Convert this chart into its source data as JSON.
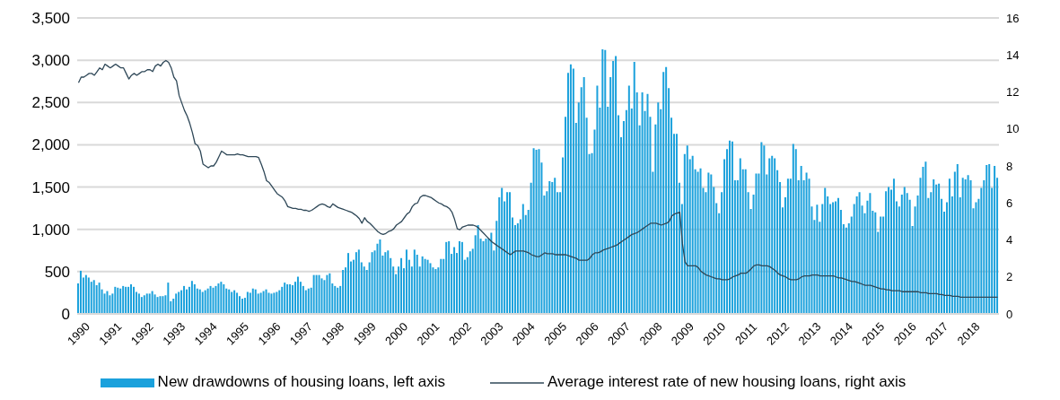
{
  "chart_data": {
    "type": "bar",
    "categories": [
      "1990",
      null,
      null,
      null,
      null,
      null,
      null,
      null,
      null,
      null,
      null,
      null,
      "1991",
      null,
      null,
      null,
      null,
      null,
      null,
      null,
      null,
      null,
      null,
      null,
      "1992",
      null,
      null,
      null,
      null,
      null,
      null,
      null,
      null,
      null,
      null,
      null,
      "1993",
      null,
      null,
      null,
      null,
      null,
      null,
      null,
      null,
      null,
      null,
      null,
      "1994",
      null,
      null,
      null,
      null,
      null,
      null,
      null,
      null,
      null,
      null,
      null,
      "1995",
      null,
      null,
      null,
      null,
      null,
      null,
      null,
      null,
      null,
      null,
      null,
      "1996",
      null,
      null,
      null,
      null,
      null,
      null,
      null,
      null,
      null,
      null,
      null,
      "1997",
      null,
      null,
      null,
      null,
      null,
      null,
      null,
      null,
      null,
      null,
      null,
      "1998",
      null,
      null,
      null,
      null,
      null,
      null,
      null,
      null,
      null,
      null,
      null,
      "1999",
      null,
      null,
      null,
      null,
      null,
      null,
      null,
      null,
      null,
      null,
      null,
      "2000",
      null,
      null,
      null,
      null,
      null,
      null,
      null,
      null,
      null,
      null,
      null,
      "2001",
      null,
      null,
      null,
      null,
      null,
      null,
      null,
      null,
      null,
      null,
      null,
      "2002",
      null,
      null,
      null,
      null,
      null,
      null,
      null,
      null,
      null,
      null,
      null,
      "2003",
      null,
      null,
      null,
      null,
      null,
      null,
      null,
      null,
      null,
      null,
      null,
      "2004",
      null,
      null,
      null,
      null,
      null,
      null,
      null,
      null,
      null,
      null,
      null,
      "2005",
      null,
      null,
      null,
      null,
      null,
      null,
      null,
      null,
      null,
      null,
      null,
      "2006",
      null,
      null,
      null,
      null,
      null,
      null,
      null,
      null,
      null,
      null,
      null,
      "2007",
      null,
      null,
      null,
      null,
      null,
      null,
      null,
      null,
      null,
      null,
      null,
      "2008",
      null,
      null,
      null,
      null,
      null,
      null,
      null,
      null,
      null,
      null,
      null,
      "2009",
      null,
      null,
      null,
      null,
      null,
      null,
      null,
      null,
      null,
      null,
      null,
      "2010",
      null,
      null,
      null,
      null,
      null,
      null,
      null,
      null,
      null,
      null,
      null,
      "2011",
      null,
      null,
      null,
      null,
      null,
      null,
      null,
      null,
      null,
      null,
      null,
      "2012",
      null,
      null,
      null,
      null,
      null,
      null,
      null,
      null,
      null,
      null,
      null,
      "2013",
      null,
      null,
      null,
      null,
      null,
      null,
      null,
      null,
      null,
      null,
      null,
      "2014",
      null,
      null,
      null,
      null,
      null,
      null,
      null,
      null,
      null,
      null,
      null,
      "2015",
      null,
      null,
      null,
      null,
      null,
      null,
      null,
      null,
      null,
      null,
      null,
      "2016",
      null,
      null,
      null,
      null,
      null,
      null,
      null,
      null,
      null,
      null,
      null,
      "2017",
      null,
      null,
      null,
      null,
      null,
      null,
      null,
      null,
      null,
      null,
      null,
      "2018",
      null,
      null,
      null,
      null,
      null,
      null,
      null,
      null,
      null,
      null,
      null
    ],
    "series": [
      {
        "name": "New drawdowns of housing loans, left axis",
        "color": "#1ba1dc",
        "values": [
          360,
          510,
          430,
          460,
          430,
          380,
          400,
          340,
          370,
          290,
          240,
          270,
          220,
          240,
          320,
          310,
          300,
          330,
          320,
          320,
          350,
          320,
          260,
          240,
          200,
          220,
          240,
          240,
          270,
          230,
          200,
          210,
          210,
          220,
          370,
          150,
          180,
          240,
          260,
          280,
          330,
          290,
          320,
          390,
          350,
          300,
          290,
          260,
          280,
          300,
          330,
          310,
          330,
          360,
          380,
          350,
          300,
          290,
          260,
          280,
          250,
          210,
          180,
          190,
          260,
          250,
          300,
          290,
          240,
          250,
          270,
          290,
          250,
          240,
          250,
          260,
          280,
          320,
          370,
          350,
          350,
          340,
          380,
          440,
          380,
          330,
          280,
          300,
          310,
          460,
          460,
          460,
          420,
          400,
          460,
          480,
          360,
          330,
          310,
          330,
          520,
          550,
          720,
          620,
          640,
          730,
          760,
          610,
          560,
          520,
          610,
          730,
          750,
          830,
          880,
          690,
          730,
          750,
          660,
          560,
          470,
          560,
          660,
          540,
          760,
          640,
          560,
          760,
          700,
          560,
          680,
          650,
          640,
          600,
          550,
          530,
          550,
          650,
          650,
          850,
          860,
          710,
          790,
          720,
          860,
          850,
          640,
          670,
          740,
          770,
          930,
          1050,
          890,
          860,
          890,
          890,
          960,
          750,
          1100,
          1380,
          1490,
          1330,
          1440,
          1440,
          1140,
          1050,
          1070,
          1120,
          1300,
          1170,
          1230,
          1550,
          1960,
          1940,
          1950,
          1790,
          1400,
          1450,
          1570,
          1560,
          1610,
          1440,
          1440,
          1850,
          2330,
          2850,
          2950,
          2900,
          2260,
          2500,
          2680,
          2800,
          2320,
          1890,
          1900,
          2180,
          2700,
          2440,
          3130,
          3120,
          2450,
          2800,
          2990,
          3050,
          2350,
          2090,
          2280,
          2410,
          2700,
          2430,
          2980,
          2620,
          2230,
          2620,
          2400,
          2600,
          2330,
          1680,
          2240,
          2500,
          2420,
          2860,
          2920,
          2670,
          2320,
          2130,
          2130,
          1550,
          1300,
          1890,
          1990,
          1830,
          1870,
          1710,
          1680,
          1720,
          1490,
          1440,
          1670,
          1650,
          1500,
          1310,
          1190,
          1440,
          1830,
          1950,
          2050,
          2040,
          1580,
          1580,
          1840,
          1710,
          1710,
          1440,
          1240,
          1410,
          1660,
          1660,
          2030,
          1990,
          1650,
          1840,
          1870,
          1840,
          1700,
          1560,
          1260,
          1380,
          1600,
          1600,
          2010,
          1950,
          1580,
          1750,
          1580,
          1670,
          1600,
          1270,
          1110,
          1290,
          1090,
          1300,
          1490,
          1390,
          1300,
          1320,
          1330,
          1370,
          1230,
          1060,
          1020,
          1070,
          1150,
          1300,
          1390,
          1440,
          1280,
          1190,
          1340,
          1430,
          1220,
          1200,
          970,
          1150,
          1150,
          1450,
          1500,
          1470,
          1600,
          1330,
          1270,
          1410,
          1500,
          1430,
          1350,
          1040,
          1270,
          1400,
          1610,
          1740,
          1800,
          1370,
          1440,
          1590,
          1530,
          1540,
          1360,
          1210,
          1320,
          1600,
          1390,
          1680,
          1770,
          1380,
          1610,
          1590,
          1640,
          1580,
          1250,
          1320,
          1360,
          1490,
          1580,
          1760,
          1770,
          1490,
          1750,
          1610
        ]
      },
      {
        "name": "Average interest rate of new housing loans, right axis",
        "type": "line",
        "axis": "y2",
        "color": "#2f4858",
        "values": [
          12.5,
          12.8,
          12.8,
          12.9,
          13.0,
          13.0,
          12.9,
          13.1,
          13.3,
          13.2,
          13.5,
          13.4,
          13.3,
          13.4,
          13.5,
          13.4,
          13.3,
          13.3,
          13.0,
          12.7,
          12.9,
          13.0,
          12.9,
          13.0,
          13.1,
          13.1,
          13.2,
          13.2,
          13.1,
          13.4,
          13.5,
          13.4,
          13.6,
          13.7,
          13.6,
          13.3,
          12.8,
          12.6,
          11.8,
          11.4,
          11.0,
          10.7,
          10.3,
          9.8,
          9.2,
          9.1,
          8.8,
          8.1,
          8.0,
          7.9,
          8.0,
          8.0,
          8.2,
          8.5,
          8.8,
          8.7,
          8.6,
          8.6,
          8.6,
          8.6,
          8.65,
          8.6,
          8.6,
          8.55,
          8.5,
          8.5,
          8.5,
          8.5,
          8.45,
          8.1,
          7.7,
          7.2,
          7.1,
          6.9,
          6.7,
          6.5,
          6.4,
          6.3,
          6.1,
          5.8,
          5.75,
          5.7,
          5.7,
          5.65,
          5.65,
          5.6,
          5.6,
          5.55,
          5.6,
          5.7,
          5.8,
          5.9,
          5.95,
          5.9,
          5.8,
          5.75,
          5.95,
          5.85,
          5.75,
          5.7,
          5.65,
          5.6,
          5.55,
          5.5,
          5.4,
          5.3,
          5.15,
          4.9,
          5.2,
          5.0,
          4.9,
          4.75,
          4.6,
          4.45,
          4.35,
          4.3,
          4.35,
          4.45,
          4.5,
          4.6,
          4.8,
          4.9,
          5.0,
          5.2,
          5.4,
          5.5,
          5.8,
          5.95,
          6.0,
          6.3,
          6.4,
          6.4,
          6.35,
          6.3,
          6.2,
          6.1,
          6.0,
          5.95,
          5.85,
          5.8,
          5.7,
          5.5,
          5.1,
          4.6,
          4.55,
          4.7,
          4.75,
          4.8,
          4.8,
          4.8,
          4.75,
          4.65,
          4.5,
          4.35,
          4.2,
          4.05,
          3.9,
          3.8,
          3.7,
          3.6,
          3.5,
          3.4,
          3.3,
          3.2,
          3.3,
          3.4,
          3.4,
          3.4,
          3.4,
          3.35,
          3.3,
          3.2,
          3.15,
          3.1,
          3.1,
          3.2,
          3.3,
          3.25,
          3.25,
          3.25,
          3.2,
          3.2,
          3.2,
          3.2,
          3.2,
          3.15,
          3.1,
          3.05,
          3.0,
          2.9,
          2.9,
          2.9,
          2.9,
          3.0,
          3.2,
          3.3,
          3.3,
          3.35,
          3.45,
          3.5,
          3.55,
          3.6,
          3.65,
          3.7,
          3.8,
          3.9,
          4.0,
          4.1,
          4.2,
          4.3,
          4.35,
          4.4,
          4.5,
          4.6,
          4.7,
          4.8,
          4.9,
          4.9,
          4.9,
          4.85,
          4.8,
          4.85,
          4.9,
          5.0,
          5.3,
          5.4,
          5.45,
          5.5,
          3.8,
          2.8,
          2.6,
          2.6,
          2.6,
          2.6,
          2.5,
          2.3,
          2.2,
          2.1,
          2.05,
          2.0,
          1.95,
          1.9,
          1.9,
          1.85,
          1.85,
          1.85,
          1.9,
          2.0,
          2.05,
          2.1,
          2.2,
          2.2,
          2.2,
          2.3,
          2.45,
          2.6,
          2.65,
          2.65,
          2.6,
          2.6,
          2.6,
          2.55,
          2.45,
          2.35,
          2.2,
          2.1,
          2.05,
          2.0,
          1.9,
          1.85,
          1.85,
          1.85,
          1.9,
          2.0,
          2.05,
          2.05,
          2.05,
          2.1,
          2.1,
          2.1,
          2.05,
          2.05,
          2.05,
          2.05,
          2.05,
          2.05,
          2.0,
          1.95,
          1.95,
          1.9,
          1.85,
          1.8,
          1.75,
          1.75,
          1.7,
          1.65,
          1.6,
          1.55,
          1.55,
          1.55,
          1.5,
          1.45,
          1.4,
          1.35,
          1.35,
          1.3,
          1.3,
          1.25,
          1.25,
          1.25,
          1.25,
          1.2,
          1.2,
          1.2,
          1.2,
          1.2,
          1.2,
          1.2,
          1.15,
          1.15,
          1.15,
          1.1,
          1.1,
          1.1,
          1.1,
          1.05,
          1.05,
          1.0,
          1.0,
          1.0,
          0.95,
          0.95,
          0.95,
          0.9,
          0.9,
          0.9,
          0.9,
          0.9,
          0.9,
          0.9,
          0.9,
          0.9,
          0.9,
          0.9,
          0.9,
          0.9,
          0.9,
          0.9
        ]
      }
    ],
    "ylim": [
      0,
      3500
    ],
    "yticks": [
      0,
      500,
      {
        "value": 1000,
        "label": "1,000"
      },
      {
        "value": 1500,
        "label": "1,500"
      },
      {
        "value": 2000,
        "label": "2,000"
      },
      {
        "value": 2500,
        "label": "2,500"
      },
      {
        "value": 3000,
        "label": "3,000"
      },
      {
        "value": 3500,
        "label": "3,500"
      }
    ],
    "y2lim": [
      0,
      16
    ],
    "y2ticks": [
      0,
      2,
      4,
      6,
      8,
      10,
      12,
      14,
      16
    ],
    "grid": "y",
    "legend": "bottom",
    "marker": "none",
    "line_style": "solid"
  }
}
